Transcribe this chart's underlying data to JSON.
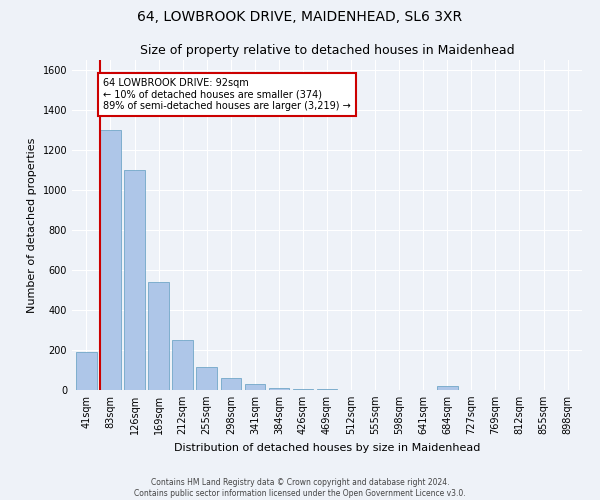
{
  "title": "64, LOWBROOK DRIVE, MAIDENHEAD, SL6 3XR",
  "subtitle": "Size of property relative to detached houses in Maidenhead",
  "xlabel": "Distribution of detached houses by size in Maidenhead",
  "ylabel": "Number of detached properties",
  "categories": [
    "41sqm",
    "83sqm",
    "126sqm",
    "169sqm",
    "212sqm",
    "255sqm",
    "298sqm",
    "341sqm",
    "384sqm",
    "426sqm",
    "469sqm",
    "512sqm",
    "555sqm",
    "598sqm",
    "641sqm",
    "684sqm",
    "727sqm",
    "769sqm",
    "812sqm",
    "855sqm",
    "898sqm"
  ],
  "values": [
    190,
    1300,
    1100,
    540,
    250,
    115,
    60,
    30,
    10,
    5,
    3,
    2,
    2,
    2,
    1,
    20,
    0,
    0,
    0,
    0,
    0
  ],
  "bar_color": "#aec6e8",
  "bar_edge_color": "#5f9dc0",
  "property_line_color": "#cc0000",
  "annotation_text": "64 LOWBROOK DRIVE: 92sqm\n← 10% of detached houses are smaller (374)\n89% of semi-detached houses are larger (3,219) →",
  "annotation_box_color": "#ffffff",
  "annotation_box_edge_color": "#cc0000",
  "ylim": [
    0,
    1650
  ],
  "yticks": [
    0,
    200,
    400,
    600,
    800,
    1000,
    1200,
    1400,
    1600
  ],
  "footer_line1": "Contains HM Land Registry data © Crown copyright and database right 2024.",
  "footer_line2": "Contains public sector information licensed under the Open Government Licence v3.0.",
  "bg_color": "#eef2f8",
  "grid_color": "#ffffff",
  "title_fontsize": 10,
  "tick_fontsize": 7,
  "ylabel_fontsize": 8,
  "xlabel_fontsize": 8
}
